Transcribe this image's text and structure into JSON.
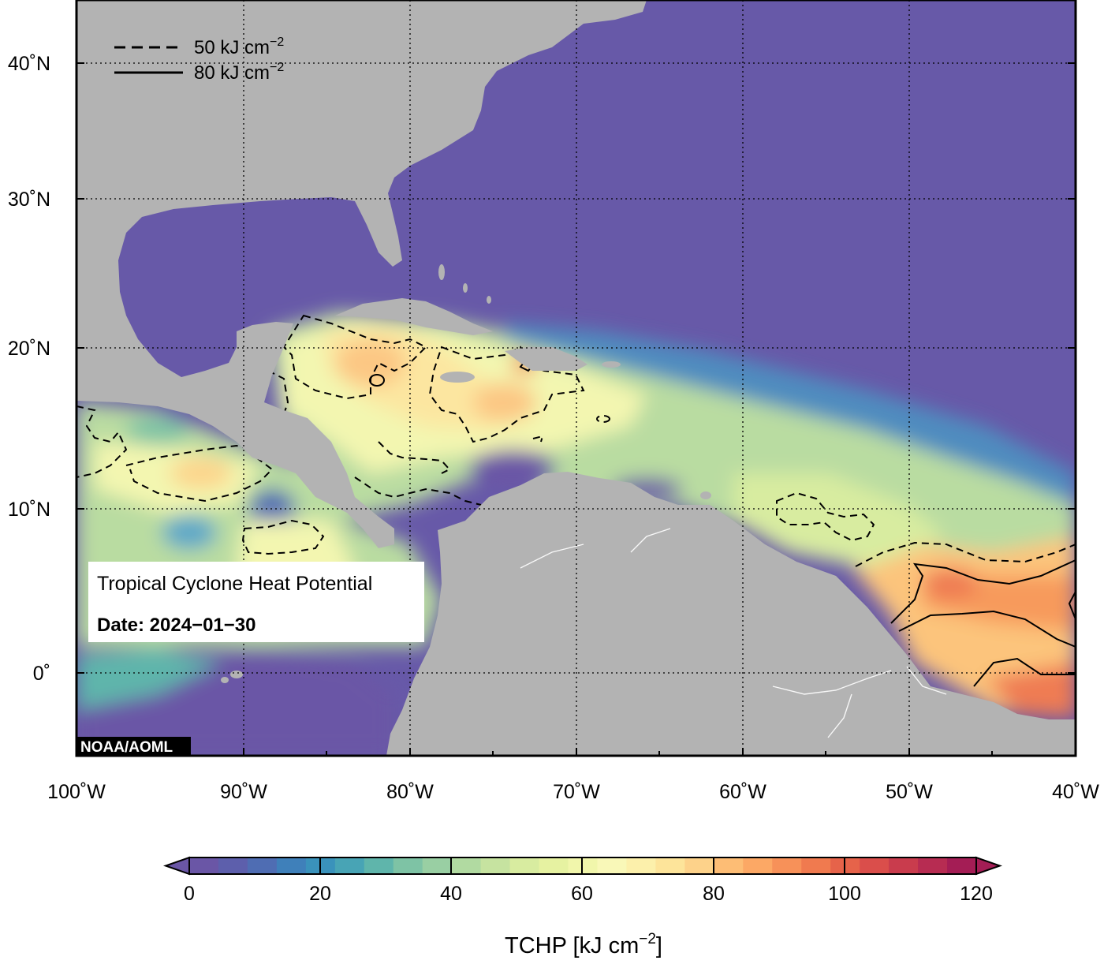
{
  "map": {
    "axes": {
      "lon_ticks": [
        "100˚W",
        "90˚W",
        "80˚W",
        "70˚W",
        "60˚W",
        "50˚W",
        "40˚W"
      ],
      "lat_ticks": [
        "40˚N",
        "30˚N",
        "20˚N",
        "10˚N",
        "0˚"
      ]
    },
    "legend": {
      "dashed_label": "50 kJ cm",
      "solid_label": "80 kJ cm",
      "exponent": "−2"
    },
    "info_box": {
      "title": "Tropical Cyclone Heat Potential",
      "date_label": "Date: 2024−01−30"
    },
    "credit": "NOAA/AOML",
    "colors": {
      "land": "#b3b3b3",
      "ocean_low": "#6759a8",
      "ocean_high": "#ef7b53"
    }
  },
  "colorbar": {
    "ticks": [
      "0",
      "20",
      "40",
      "60",
      "80",
      "100",
      "120"
    ],
    "title": "TCHP [kJ cm",
    "title_exponent": "−2",
    "title_close": "]",
    "colors": [
      "#6a56a6",
      "#5d5fac",
      "#4f6db3",
      "#3f80ba",
      "#3a92bb",
      "#48a4b5",
      "#5fb5ab",
      "#7ec3a5",
      "#99cfa3",
      "#b1daa1",
      "#c6e3a0",
      "#d8eca0",
      "#e6f2a1",
      "#f1f6ab",
      "#f9f8b8",
      "#fcf0ab",
      "#fde49a",
      "#fdd28a",
      "#fdbd75",
      "#fca865",
      "#f79159",
      "#f07a4f",
      "#e6634a",
      "#da4e4b",
      "#c93c4d",
      "#b72c52",
      "#a41d55"
    ]
  }
}
